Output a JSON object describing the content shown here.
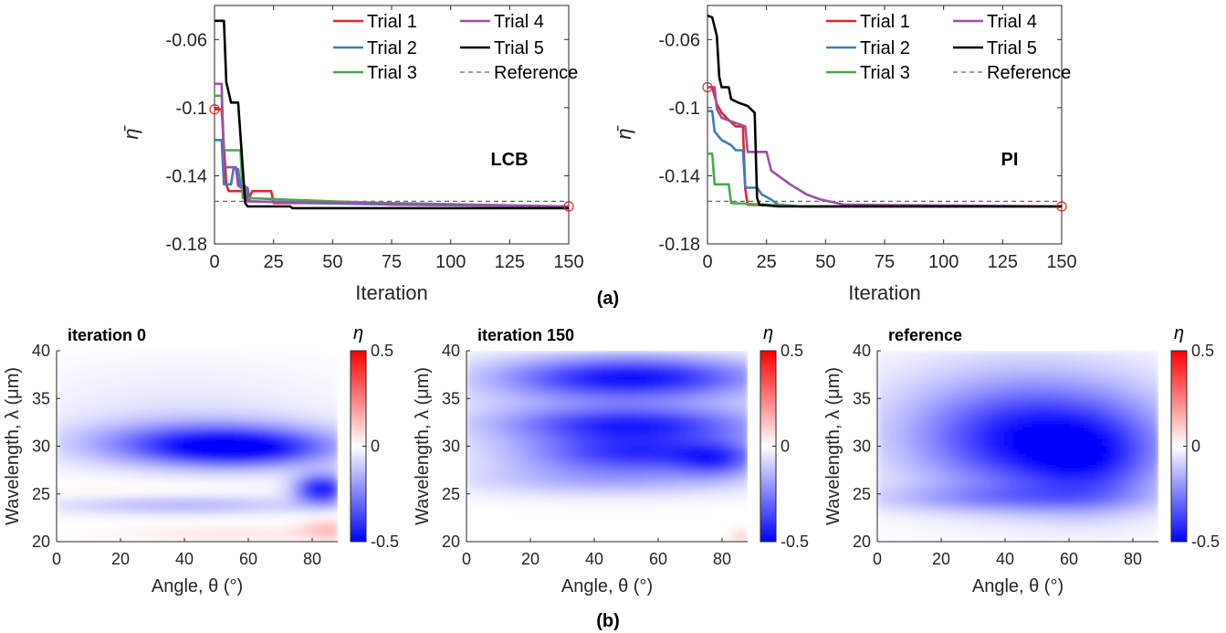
{
  "colors": {
    "trial1": "#e3262b",
    "trial2": "#3b7dbd",
    "trial3": "#4aa84a",
    "trial4": "#9d4fa8",
    "trial5": "#000000",
    "reference": "#666666",
    "marker": "#e3262b",
    "heat_neg": "#0000ff",
    "heat_zero": "#ffffff",
    "heat_pos": "#ff0000"
  },
  "panel_labels": {
    "a": "(a)",
    "b": "(b)"
  },
  "chart_data": [
    {
      "id": "lcb",
      "type": "line",
      "tag": "LCB",
      "xlabel": "Iteration",
      "ylabel": "η̄",
      "xlim": [
        0,
        150
      ],
      "ylim": [
        -0.18,
        -0.04
      ],
      "xticks": [
        0,
        25,
        50,
        75,
        100,
        125,
        150
      ],
      "yticks": [
        -0.06,
        -0.1,
        -0.14,
        -0.18
      ],
      "ytick_labels": [
        "-0.06",
        "-0.1",
        "-0.14",
        "-0.18"
      ],
      "reference": -0.155,
      "legend_position": "top-right",
      "markers": [
        {
          "x": 0,
          "y": -0.101
        },
        {
          "x": 150,
          "y": -0.158
        }
      ],
      "series": [
        {
          "name": "Trial 1",
          "color_key": "trial1",
          "points": [
            [
              0,
              -0.101
            ],
            [
              3,
              -0.101
            ],
            [
              5,
              -0.145
            ],
            [
              6,
              -0.149
            ],
            [
              12,
              -0.149
            ],
            [
              14,
              -0.155
            ],
            [
              16,
              -0.149
            ],
            [
              24,
              -0.149
            ],
            [
              25,
              -0.156
            ],
            [
              60,
              -0.156
            ],
            [
              75,
              -0.157
            ],
            [
              150,
              -0.158
            ]
          ]
        },
        {
          "name": "Trial 2",
          "color_key": "trial2",
          "points": [
            [
              0,
              -0.119
            ],
            [
              3,
              -0.119
            ],
            [
              4,
              -0.145
            ],
            [
              7,
              -0.145
            ],
            [
              8,
              -0.136
            ],
            [
              10,
              -0.136
            ],
            [
              11,
              -0.147
            ],
            [
              14,
              -0.147
            ],
            [
              15,
              -0.155
            ],
            [
              40,
              -0.156
            ],
            [
              80,
              -0.157
            ],
            [
              150,
              -0.158
            ]
          ]
        },
        {
          "name": "Trial 3",
          "color_key": "trial3",
          "points": [
            [
              0,
              -0.093
            ],
            [
              3,
              -0.093
            ],
            [
              4,
              -0.125
            ],
            [
              11,
              -0.125
            ],
            [
              12,
              -0.153
            ],
            [
              50,
              -0.155
            ],
            [
              75,
              -0.156
            ],
            [
              150,
              -0.158
            ]
          ]
        },
        {
          "name": "Trial 4",
          "color_key": "trial4",
          "points": [
            [
              0,
              -0.086
            ],
            [
              3,
              -0.086
            ],
            [
              4,
              -0.135
            ],
            [
              9,
              -0.135
            ],
            [
              10,
              -0.146
            ],
            [
              13,
              -0.146
            ],
            [
              14,
              -0.155
            ],
            [
              60,
              -0.156
            ],
            [
              150,
              -0.158
            ]
          ]
        },
        {
          "name": "Trial 5",
          "color_key": "trial5",
          "points": [
            [
              0,
              -0.049
            ],
            [
              4,
              -0.049
            ],
            [
              5,
              -0.085
            ],
            [
              7,
              -0.097
            ],
            [
              10,
              -0.097
            ],
            [
              13,
              -0.156
            ],
            [
              14,
              -0.158
            ],
            [
              32,
              -0.158
            ],
            [
              33,
              -0.159
            ],
            [
              150,
              -0.159
            ]
          ]
        }
      ],
      "legend": [
        "Trial 1",
        "Trial 4",
        "Trial 2",
        "Trial 5",
        "Trial 3",
        "Reference"
      ]
    },
    {
      "id": "pi",
      "type": "line",
      "tag": "PI",
      "xlabel": "Iteration",
      "ylabel": "η̄",
      "xlim": [
        0,
        150
      ],
      "ylim": [
        -0.18,
        -0.04
      ],
      "xticks": [
        0,
        25,
        50,
        75,
        100,
        125,
        150
      ],
      "yticks": [
        -0.06,
        -0.1,
        -0.14,
        -0.18
      ],
      "ytick_labels": [
        "-0.06",
        "-0.1",
        "-0.14",
        "-0.18"
      ],
      "reference": -0.155,
      "legend_position": "top-right",
      "markers": [
        {
          "x": 0,
          "y": -0.088
        },
        {
          "x": 150,
          "y": -0.158
        }
      ],
      "series": [
        {
          "name": "Trial 1",
          "color_key": "trial1",
          "points": [
            [
              0,
              -0.088
            ],
            [
              2,
              -0.088
            ],
            [
              4,
              -0.098
            ],
            [
              6,
              -0.103
            ],
            [
              8,
              -0.106
            ],
            [
              12,
              -0.111
            ],
            [
              15,
              -0.111
            ],
            [
              16,
              -0.148
            ],
            [
              17,
              -0.157
            ],
            [
              40,
              -0.158
            ],
            [
              150,
              -0.158
            ]
          ]
        },
        {
          "name": "Trial 2",
          "color_key": "trial2",
          "points": [
            [
              0,
              -0.102
            ],
            [
              2,
              -0.102
            ],
            [
              3,
              -0.114
            ],
            [
              6,
              -0.119
            ],
            [
              10,
              -0.122
            ],
            [
              12,
              -0.125
            ],
            [
              15,
              -0.125
            ],
            [
              16,
              -0.147
            ],
            [
              21,
              -0.147
            ],
            [
              23,
              -0.151
            ],
            [
              27,
              -0.154
            ],
            [
              30,
              -0.157
            ],
            [
              40,
              -0.158
            ],
            [
              150,
              -0.158
            ]
          ]
        },
        {
          "name": "Trial 3",
          "color_key": "trial3",
          "points": [
            [
              0,
              -0.127
            ],
            [
              2,
              -0.127
            ],
            [
              3,
              -0.145
            ],
            [
              9,
              -0.145
            ],
            [
              10,
              -0.156
            ],
            [
              40,
              -0.158
            ],
            [
              150,
              -0.158
            ]
          ]
        },
        {
          "name": "Trial 4",
          "color_key": "trial4",
          "points": [
            [
              0,
              -0.088
            ],
            [
              3,
              -0.088
            ],
            [
              4,
              -0.101
            ],
            [
              6,
              -0.106
            ],
            [
              10,
              -0.108
            ],
            [
              16,
              -0.111
            ],
            [
              17,
              -0.126
            ],
            [
              25,
              -0.126
            ],
            [
              27,
              -0.137
            ],
            [
              31,
              -0.141
            ],
            [
              35,
              -0.145
            ],
            [
              42,
              -0.151
            ],
            [
              48,
              -0.154
            ],
            [
              58,
              -0.157
            ],
            [
              150,
              -0.158
            ]
          ]
        },
        {
          "name": "Trial 5",
          "color_key": "trial5",
          "points": [
            [
              0,
              -0.046
            ],
            [
              2,
              -0.047
            ],
            [
              4,
              -0.058
            ],
            [
              5,
              -0.082
            ],
            [
              6,
              -0.088
            ],
            [
              9,
              -0.088
            ],
            [
              10,
              -0.095
            ],
            [
              13,
              -0.097
            ],
            [
              17,
              -0.099
            ],
            [
              20,
              -0.103
            ],
            [
              21,
              -0.153
            ],
            [
              22,
              -0.157
            ],
            [
              30,
              -0.158
            ],
            [
              150,
              -0.158
            ]
          ]
        }
      ],
      "legend": [
        "Trial 1",
        "Trial 4",
        "Trial 2",
        "Trial 5",
        "Trial 3",
        "Reference"
      ]
    },
    {
      "id": "heat0",
      "type": "heatmap",
      "title": "iteration 0",
      "xlabel": "Angle, θ (°)",
      "ylabel": "Wavelength, λ (μm)",
      "xlim": [
        0,
        88
      ],
      "ylim": [
        20,
        40
      ],
      "xticks": [
        0,
        20,
        40,
        60,
        80
      ],
      "yticks": [
        20,
        25,
        30,
        35,
        40
      ],
      "colorbar": {
        "label": "η",
        "range": [
          -0.5,
          0.5
        ],
        "ticks": [
          "0.5",
          "0",
          "-0.5"
        ]
      },
      "blobs": [
        {
          "cx": 48,
          "cy": 30.2,
          "sx": 26,
          "sy": 1.6,
          "amp": -0.38
        },
        {
          "cx": 60,
          "cy": 29.6,
          "sx": 18,
          "sy": 1.2,
          "amp": -0.22
        },
        {
          "cx": 83,
          "cy": 25.5,
          "sx": 6,
          "sy": 1.1,
          "amp": -0.45
        },
        {
          "cx": 40,
          "cy": 23.8,
          "sx": 30,
          "sy": 0.7,
          "amp": -0.14
        },
        {
          "cx": 40,
          "cy": 33.5,
          "sx": 35,
          "sy": 3.5,
          "amp": -0.05
        },
        {
          "cx": 20,
          "cy": 25.5,
          "sx": 18,
          "sy": 0.5,
          "amp": 0.03
        },
        {
          "cx": 85,
          "cy": 21.3,
          "sx": 6,
          "sy": 0.8,
          "amp": 0.12
        },
        {
          "cx": 55,
          "cy": 20.8,
          "sx": 25,
          "sy": 0.6,
          "amp": 0.05
        }
      ]
    },
    {
      "id": "heat150",
      "type": "heatmap",
      "title": "iteration 150",
      "xlabel": "Angle, θ (°)",
      "ylabel": "Wavelength, λ (μm)",
      "xlim": [
        0,
        88
      ],
      "ylim": [
        20,
        40
      ],
      "xticks": [
        0,
        20,
        40,
        60,
        80
      ],
      "yticks": [
        20,
        25,
        30,
        35,
        40
      ],
      "colorbar": {
        "label": "η",
        "range": [
          -0.5,
          0.5
        ],
        "ticks": [
          "0.5",
          "0",
          "-0.5"
        ]
      },
      "blobs": [
        {
          "cx": 52,
          "cy": 37.2,
          "sx": 28,
          "sy": 1.5,
          "amp": -0.4
        },
        {
          "cx": 52,
          "cy": 32.2,
          "sx": 28,
          "sy": 1.3,
          "amp": -0.35
        },
        {
          "cx": 55,
          "cy": 29.2,
          "sx": 26,
          "sy": 1.3,
          "amp": -0.35
        },
        {
          "cx": 78,
          "cy": 28.5,
          "sx": 8,
          "sy": 1.2,
          "amp": -0.2
        },
        {
          "cx": 45,
          "cy": 26.5,
          "sx": 32,
          "sy": 1.2,
          "amp": -0.15
        },
        {
          "cx": 45,
          "cy": 34.5,
          "sx": 35,
          "sy": 4,
          "amp": -0.1
        },
        {
          "cx": 86,
          "cy": 20.5,
          "sx": 2.5,
          "sy": 0.6,
          "amp": 0.08
        }
      ]
    },
    {
      "id": "heatref",
      "type": "heatmap",
      "title": "reference",
      "xlabel": "Angle, θ (°)",
      "ylabel": "Wavelength, λ (μm)",
      "xlim": [
        0,
        88
      ],
      "ylim": [
        20,
        40
      ],
      "xticks": [
        0,
        20,
        40,
        60,
        80
      ],
      "yticks": [
        20,
        25,
        30,
        35,
        40
      ],
      "colorbar": {
        "label": "η",
        "range": [
          -0.5,
          0.5
        ],
        "ticks": [
          "0.5",
          "0",
          "-0.5"
        ]
      },
      "blobs": [
        {
          "cx": 50,
          "cy": 30.5,
          "sx": 26,
          "sy": 4.0,
          "amp": -0.42
        },
        {
          "cx": 68,
          "cy": 28.0,
          "sx": 14,
          "sy": 3.2,
          "amp": -0.18
        },
        {
          "cx": 40,
          "cy": 24.5,
          "sx": 30,
          "sy": 1.0,
          "amp": -0.15
        },
        {
          "cx": 45,
          "cy": 34.0,
          "sx": 35,
          "sy": 5.0,
          "amp": -0.08
        }
      ]
    }
  ]
}
